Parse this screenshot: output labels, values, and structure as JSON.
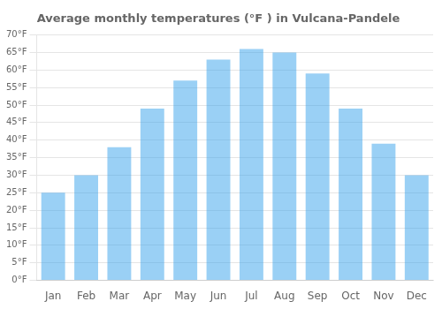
{
  "chart_data": {
    "type": "bar",
    "title": "Average monthly temperatures (°F ) in Vulcana-Pandele",
    "categories": [
      "Jan",
      "Feb",
      "Mar",
      "Apr",
      "May",
      "Jun",
      "Jul",
      "Aug",
      "Sep",
      "Oct",
      "Nov",
      "Dec"
    ],
    "values": [
      25,
      30,
      38,
      49,
      57,
      63,
      66,
      65,
      59,
      49,
      39,
      30
    ],
    "ylim": [
      0,
      70
    ],
    "yticks": [
      {
        "value": 0,
        "label": "0°F"
      },
      {
        "value": 5,
        "label": "5°F"
      },
      {
        "value": 10,
        "label": "10°F"
      },
      {
        "value": 15,
        "label": "15°F"
      },
      {
        "value": 20,
        "label": "20°F"
      },
      {
        "value": 25,
        "label": "25°F"
      },
      {
        "value": 30,
        "label": "30°F"
      },
      {
        "value": 35,
        "label": "35°F"
      },
      {
        "value": 40,
        "label": "40°F"
      },
      {
        "value": 45,
        "label": "45°F"
      },
      {
        "value": 50,
        "label": "50°F"
      },
      {
        "value": 55,
        "label": "55°F"
      },
      {
        "value": 60,
        "label": "60°F"
      },
      {
        "value": 65,
        "label": "65°F"
      },
      {
        "value": 70,
        "label": "70°F"
      }
    ],
    "grid": "y"
  }
}
